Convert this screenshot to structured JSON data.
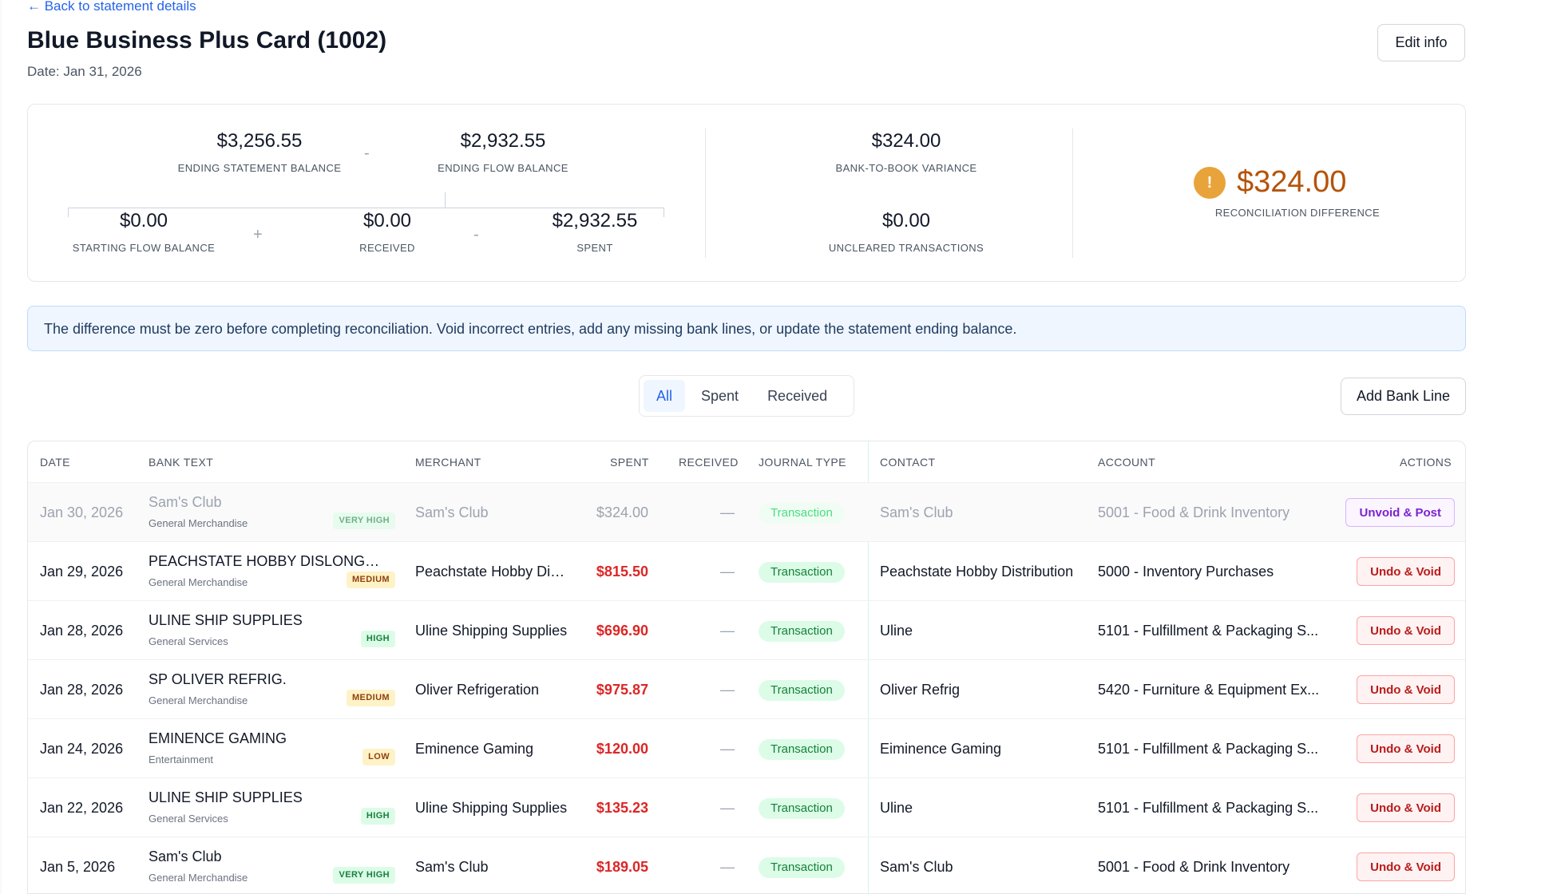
{
  "header": {
    "back_link": "← Back to statement details",
    "title": "Blue Business Plus Card (1002)",
    "date": "Date: Jan 31, 2026",
    "edit_label": "Edit info"
  },
  "summary": {
    "ending_statement_balance": {
      "value": "$3,256.55",
      "label": "ENDING STATEMENT BALANCE"
    },
    "ending_flow_balance": {
      "value": "$2,932.55",
      "label": "ENDING FLOW BALANCE"
    },
    "starting_flow_balance": {
      "value": "$0.00",
      "label": "STARTING FLOW BALANCE"
    },
    "received": {
      "value": "$0.00",
      "label": "RECEIVED"
    },
    "spent": {
      "value": "$2,932.55",
      "label": "SPENT"
    },
    "bank_to_book_variance": {
      "value": "$324.00",
      "label": "BANK-TO-BOOK VARIANCE"
    },
    "uncleared_transactions": {
      "value": "$0.00",
      "label": "UNCLEARED TRANSACTIONS"
    },
    "reconciliation_difference": {
      "value": "$324.00",
      "label": "RECONCILIATION DIFFERENCE"
    },
    "ops": {
      "minus1": "-",
      "plus": "+",
      "minus2": "-"
    },
    "warn_glyph": "!"
  },
  "banner": "The difference must be zero before completing reconciliation. Void incorrect entries, add any missing bank lines, or update the statement ending balance.",
  "filters": {
    "all": "All",
    "spent": "Spent",
    "received": "Received",
    "active": "all"
  },
  "add_bank_line": "Add Bank Line",
  "table": {
    "headers": {
      "date": "DATE",
      "bank_text": "BANK TEXT",
      "merchant": "MERCHANT",
      "spent": "SPENT",
      "received": "RECEIVED",
      "journal_type": "JOURNAL TYPE",
      "contact": "CONTACT",
      "account": "ACCOUNT",
      "actions": "ACTIONS"
    },
    "rows": [
      {
        "date": "Jan 30, 2026",
        "bank_text": "Sam's Club",
        "category": "General Merchandise",
        "confidence": "VERY HIGH",
        "merchant": "Sam's Club",
        "spent": "$324.00",
        "received": "—",
        "journal": "Transaction",
        "contact": "Sam's Club",
        "account": "5001 - Food & Drink Inventory",
        "action": "Unvoid & Post"
      },
      {
        "date": "Jan 29, 2026",
        "bank_text": "PEACHSTATE HOBBY DISLONGW...",
        "category": "General Merchandise",
        "confidence": "MEDIUM",
        "merchant": "Peachstate Hobby Dist...",
        "spent": "$815.50",
        "received": "—",
        "journal": "Transaction",
        "contact": "Peachstate Hobby Distribution",
        "account": "5000 - Inventory Purchases",
        "action": "Undo & Void"
      },
      {
        "date": "Jan 28, 2026",
        "bank_text": "ULINE SHIP SUPPLIES",
        "category": "General Services",
        "confidence": "HIGH",
        "merchant": "Uline Shipping Supplies",
        "spent": "$696.90",
        "received": "—",
        "journal": "Transaction",
        "contact": "Uline",
        "account": "5101 - Fulfillment & Packaging S...",
        "action": "Undo & Void"
      },
      {
        "date": "Jan 28, 2026",
        "bank_text": "SP OLIVER REFRIG.",
        "category": "General Merchandise",
        "confidence": "MEDIUM",
        "merchant": "Oliver Refrigeration",
        "spent": "$975.87",
        "received": "—",
        "journal": "Transaction",
        "contact": "Oliver Refrig",
        "account": "5420 - Furniture & Equipment Ex...",
        "action": "Undo & Void"
      },
      {
        "date": "Jan 24, 2026",
        "bank_text": "EMINENCE GAMING",
        "category": "Entertainment",
        "confidence": "LOW",
        "merchant": "Eminence Gaming",
        "spent": "$120.00",
        "received": "—",
        "journal": "Transaction",
        "contact": "Eiminence Gaming",
        "account": "5101 - Fulfillment & Packaging S...",
        "action": "Undo & Void"
      },
      {
        "date": "Jan 22, 2026",
        "bank_text": "ULINE SHIP SUPPLIES",
        "category": "General Services",
        "confidence": "HIGH",
        "merchant": "Uline Shipping Supplies",
        "spent": "$135.23",
        "received": "—",
        "journal": "Transaction",
        "contact": "Uline",
        "account": "5101 - Fulfillment & Packaging S...",
        "action": "Undo & Void"
      },
      {
        "date": "Jan 5, 2026",
        "bank_text": "Sam's Club",
        "category": "General Merchandise",
        "confidence": "VERY HIGH",
        "merchant": "Sam's Club",
        "spent": "$189.05",
        "received": "—",
        "journal": "Transaction",
        "contact": "Sam's Club",
        "account": "5001 - Food & Drink Inventory",
        "action": "Undo & Void"
      }
    ]
  },
  "colors": {
    "accent": "#2563eb",
    "warning": "#e8a33a",
    "difference": "#b45309",
    "spent": "#dc2626",
    "void_button": "#b91c1c",
    "unvoid_button": "#7e22ce",
    "journal_badge": "#15803d"
  },
  "icons": {
    "warning": "warning-icon",
    "back": "arrow-left-icon"
  }
}
